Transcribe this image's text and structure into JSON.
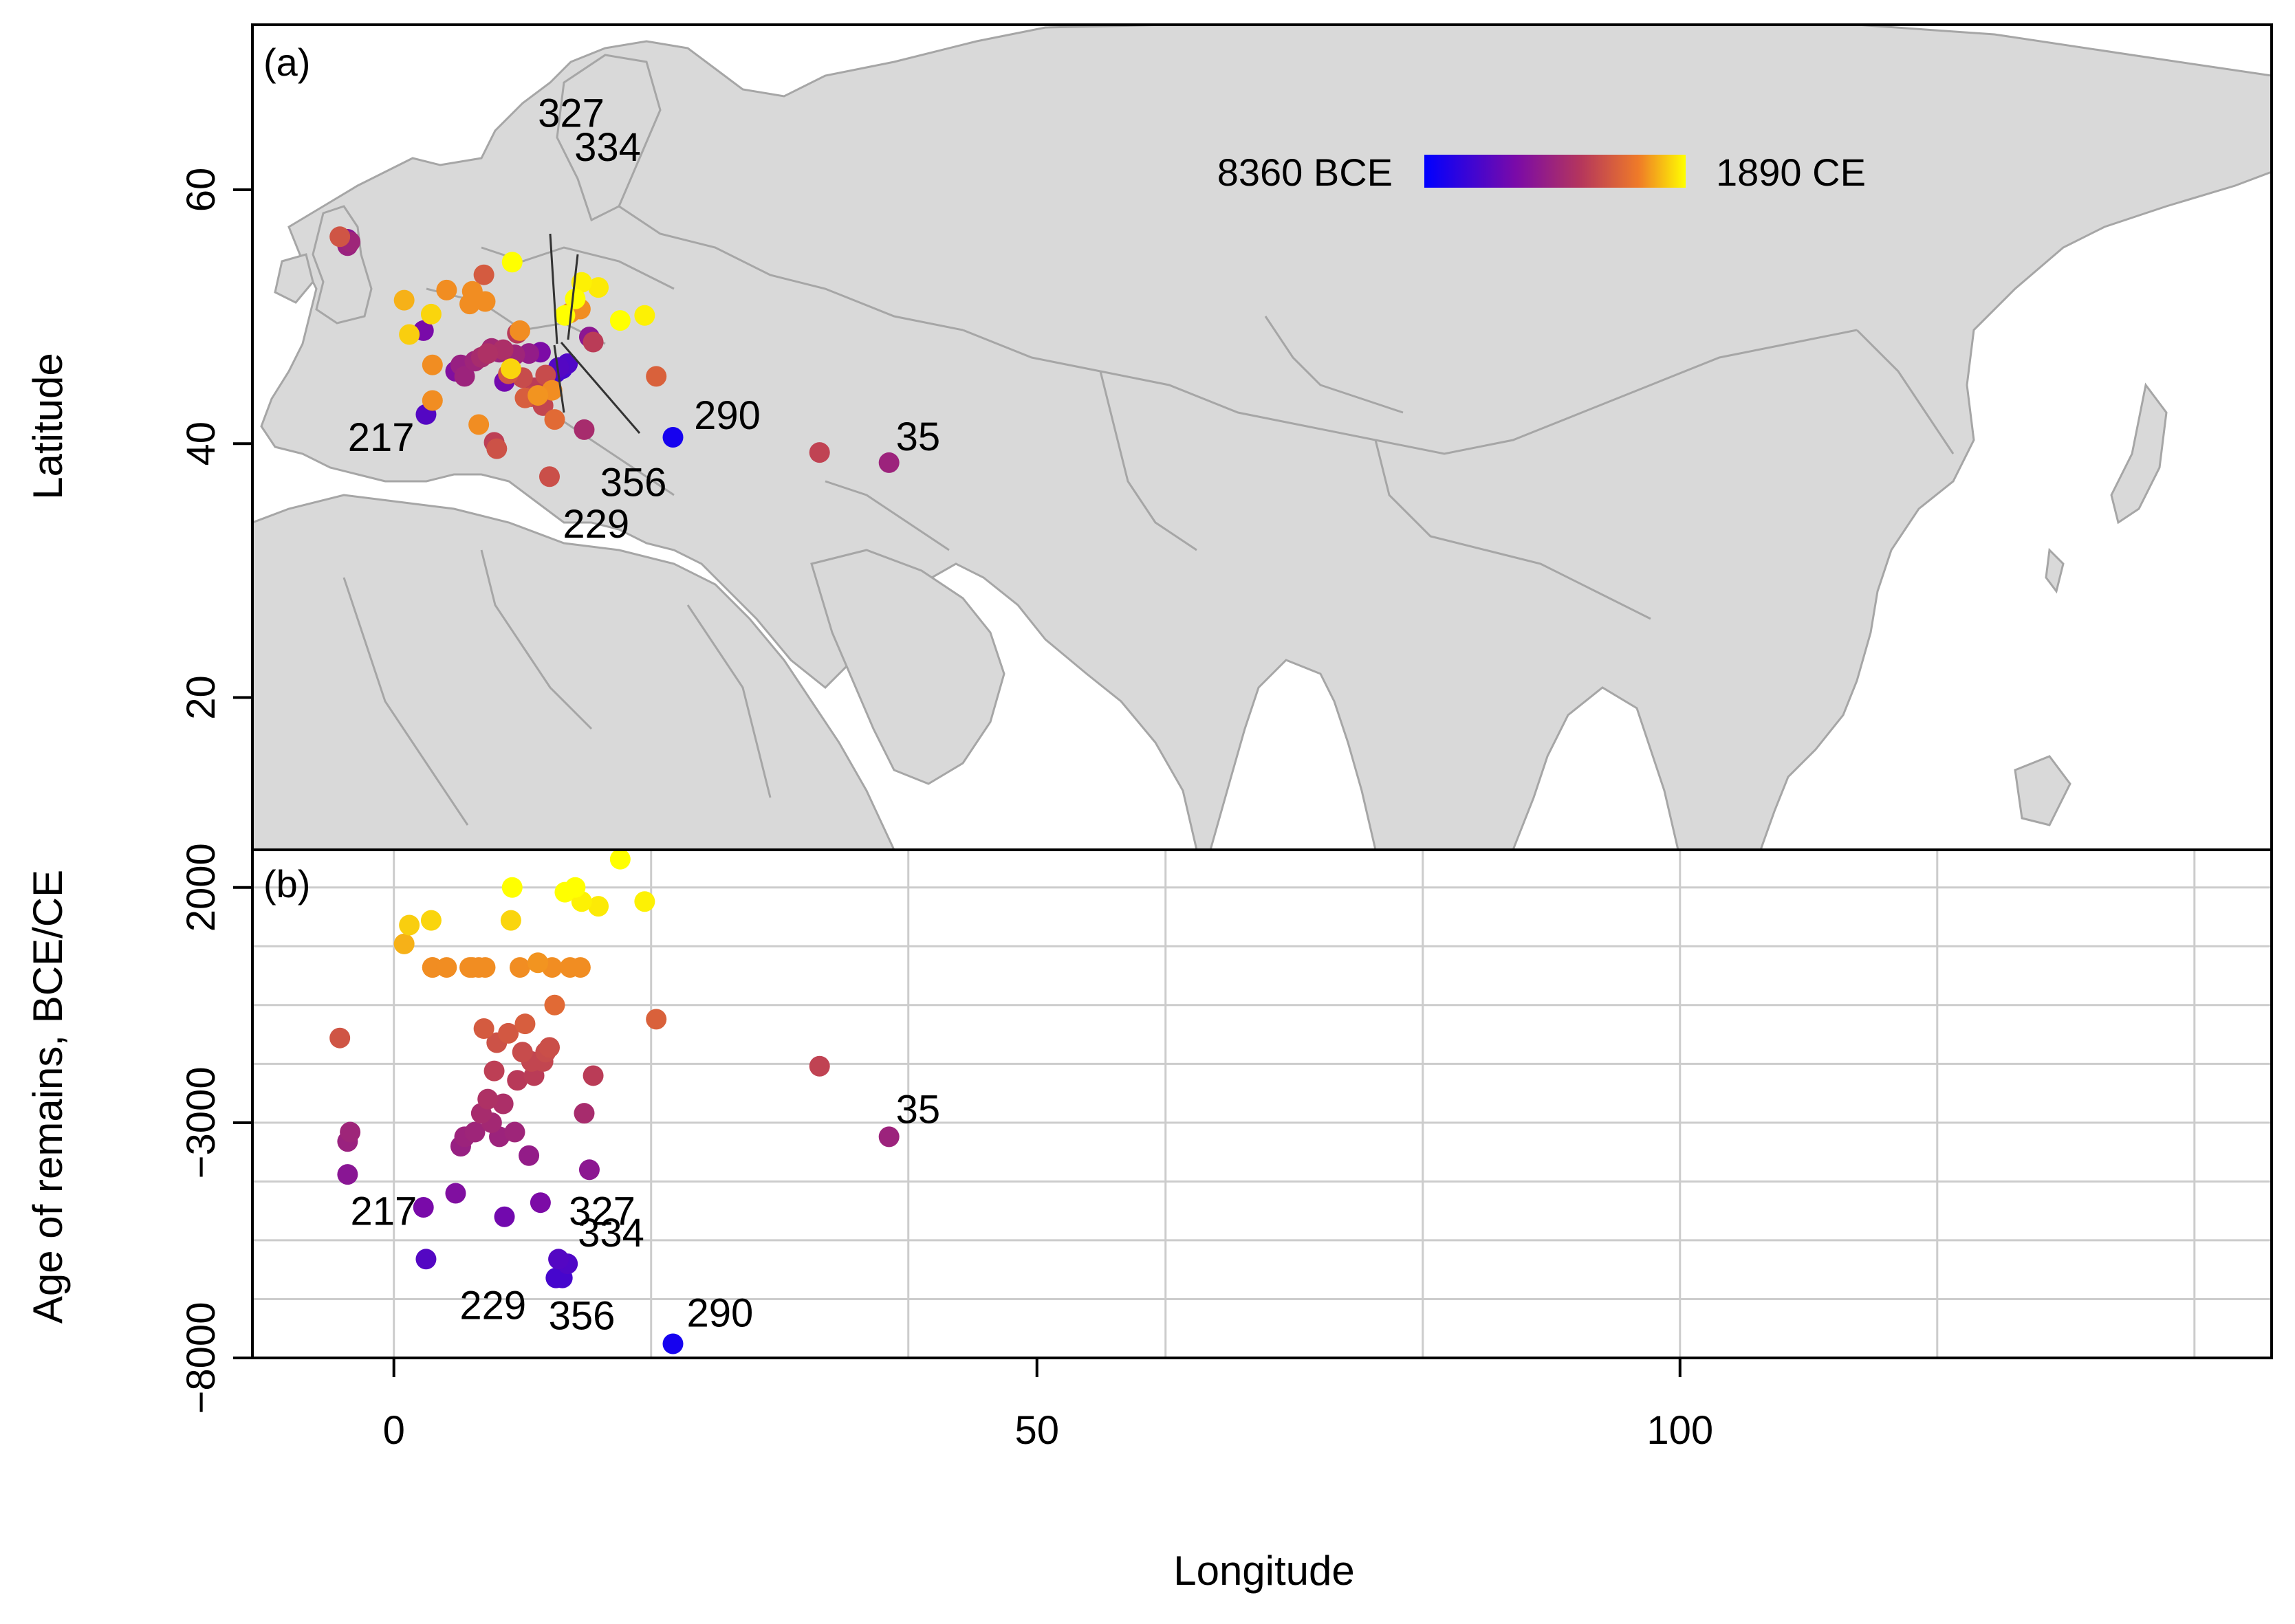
{
  "chart_data": [
    {
      "type": "scatter",
      "panel_tag": "(a)",
      "title": "",
      "xlabel": "Longitude",
      "ylabel": "Latitude",
      "xlim": [
        -11,
        146
      ],
      "ylim": [
        8,
        73
      ],
      "x_ticks": [
        "0",
        "50",
        "100"
      ],
      "x_tick_values": [
        0,
        50,
        100
      ],
      "y_ticks": [
        "20",
        "40",
        "60"
      ],
      "y_tick_values": [
        20,
        40,
        60
      ],
      "grid": false,
      "background": "grey world map with country borders",
      "colorbar": {
        "min_label": "8360 BCE",
        "max_label": "1890 CE",
        "colors": [
          "#0000ff",
          "#7a0aa8",
          "#b5365c",
          "#ef7b28",
          "#ffff00"
        ]
      },
      "annotations": [
        {
          "text": "327",
          "x": 12.8,
          "y": 46.0
        },
        {
          "text": "334",
          "x": 13.5,
          "y": 46.3
        },
        {
          "text": "290",
          "x": 22.0,
          "y": 40.6
        },
        {
          "text": "35",
          "x": 38.5,
          "y": 38.5
        },
        {
          "text": "217",
          "x": 2.3,
          "y": 42.4
        },
        {
          "text": "356",
          "x": 13.1,
          "y": 45.9
        },
        {
          "text": "229",
          "x": 12.6,
          "y": 45.6
        }
      ],
      "points": [
        {
          "lon": -4.2,
          "lat": 56.3,
          "age": -1200
        },
        {
          "lon": -3.6,
          "lat": 56.1,
          "age": -4100
        },
        {
          "lon": -3.6,
          "lat": 55.6,
          "age": -3400
        },
        {
          "lon": -3.4,
          "lat": 55.9,
          "age": -3200
        },
        {
          "lon": 0.8,
          "lat": 51.3,
          "age": 800
        },
        {
          "lon": 1.2,
          "lat": 48.6,
          "age": 1200
        },
        {
          "lon": 2.3,
          "lat": 48.9,
          "age": -4800
        },
        {
          "lon": 2.5,
          "lat": 42.3,
          "age": -5900
        },
        {
          "lon": 2.9,
          "lat": 50.2,
          "age": 1300
        },
        {
          "lon": 3.0,
          "lat": 43.4,
          "age": 300
        },
        {
          "lon": 3.0,
          "lat": 46.2,
          "age": 300
        },
        {
          "lon": 4.1,
          "lat": 52.1,
          "age": 300
        },
        {
          "lon": 4.8,
          "lat": 45.7,
          "age": -4500
        },
        {
          "lon": 5.2,
          "lat": 46.2,
          "age": -3500
        },
        {
          "lon": 5.5,
          "lat": 45.3,
          "age": -3300
        },
        {
          "lon": 5.9,
          "lat": 51.0,
          "age": 300
        },
        {
          "lon": 6.1,
          "lat": 52.0,
          "age": 300
        },
        {
          "lon": 6.3,
          "lat": 46.5,
          "age": -3200
        },
        {
          "lon": 6.6,
          "lat": 41.5,
          "age": 300
        },
        {
          "lon": 6.8,
          "lat": 46.8,
          "age": -2800
        },
        {
          "lon": 7.0,
          "lat": 53.3,
          "age": -1000
        },
        {
          "lon": 7.1,
          "lat": 51.2,
          "age": 300
        },
        {
          "lon": 7.3,
          "lat": 47.1,
          "age": -2500
        },
        {
          "lon": 7.6,
          "lat": 47.5,
          "age": -3000
        },
        {
          "lon": 7.8,
          "lat": 40.1,
          "age": -1900
        },
        {
          "lon": 8.0,
          "lat": 39.6,
          "age": -1300
        },
        {
          "lon": 8.2,
          "lat": 47.2,
          "age": -3300
        },
        {
          "lon": 8.5,
          "lat": 47.4,
          "age": -2600
        },
        {
          "lon": 8.6,
          "lat": 44.9,
          "age": -5000
        },
        {
          "lon": 8.9,
          "lat": 45.5,
          "age": -1100
        },
        {
          "lon": 9.1,
          "lat": 45.9,
          "age": 1300
        },
        {
          "lon": 9.2,
          "lat": 54.3,
          "age": 2000
        },
        {
          "lon": 9.4,
          "lat": 47.0,
          "age": -3200
        },
        {
          "lon": 9.6,
          "lat": 48.7,
          "age": -2100
        },
        {
          "lon": 9.8,
          "lat": 48.9,
          "age": 300
        },
        {
          "lon": 10.0,
          "lat": 45.2,
          "age": -1500
        },
        {
          "lon": 10.2,
          "lat": 43.6,
          "age": -900
        },
        {
          "lon": 10.5,
          "lat": 47.1,
          "age": -3700
        },
        {
          "lon": 10.7,
          "lat": 43.7,
          "age": -1700
        },
        {
          "lon": 10.9,
          "lat": 44.4,
          "age": -2000
        },
        {
          "lon": 11.2,
          "lat": 43.8,
          "age": 400
        },
        {
          "lon": 11.4,
          "lat": 47.2,
          "age": -4700
        },
        {
          "lon": 11.6,
          "lat": 43.0,
          "age": -1700
        },
        {
          "lon": 11.8,
          "lat": 45.4,
          "age": -1500
        },
        {
          "lon": 12.1,
          "lat": 37.4,
          "age": -1400
        },
        {
          "lon": 12.3,
          "lat": 44.2,
          "age": 300
        },
        {
          "lon": 12.5,
          "lat": 41.9,
          "age": -500
        },
        {
          "lon": 12.6,
          "lat": 45.6,
          "age": -6300
        },
        {
          "lon": 12.8,
          "lat": 46.0,
          "age": -5900
        },
        {
          "lon": 13.1,
          "lat": 45.9,
          "age": -6300
        },
        {
          "lon": 13.3,
          "lat": 50.1,
          "age": 1900
        },
        {
          "lon": 13.5,
          "lat": 46.3,
          "age": -6000
        },
        {
          "lon": 13.7,
          "lat": 50.3,
          "age": 300
        },
        {
          "lon": 14.1,
          "lat": 51.4,
          "age": 2000
        },
        {
          "lon": 14.5,
          "lat": 50.6,
          "age": 300
        },
        {
          "lon": 14.6,
          "lat": 52.7,
          "age": 1700
        },
        {
          "lon": 14.8,
          "lat": 41.1,
          "age": -2800
        },
        {
          "lon": 15.2,
          "lat": 48.4,
          "age": -4000
        },
        {
          "lon": 15.5,
          "lat": 48.0,
          "age": -2000
        },
        {
          "lon": 15.9,
          "lat": 52.3,
          "age": 1600
        },
        {
          "lon": 17.6,
          "lat": 49.7,
          "age": 2600
        },
        {
          "lon": 19.5,
          "lat": 50.1,
          "age": 1700
        },
        {
          "lon": 20.4,
          "lat": 45.3,
          "age": -800
        },
        {
          "lon": 21.7,
          "lat": 40.5,
          "age": -7700
        },
        {
          "lon": 33.1,
          "lat": 39.3,
          "age": -1800
        },
        {
          "lon": 38.5,
          "lat": 38.5,
          "age": -3300
        }
      ]
    },
    {
      "type": "scatter",
      "panel_tag": "(b)",
      "title": "",
      "xlabel": "Longitude",
      "ylabel": "Age of remains, BCE/CE",
      "xlim": [
        -11,
        146
      ],
      "ylim": [
        -8000,
        2800
      ],
      "x_ticks": [
        "0",
        "50",
        "100"
      ],
      "x_tick_values": [
        0,
        50,
        100
      ],
      "y_ticks": [
        "−8000",
        "−3000",
        "2000"
      ],
      "y_tick_values": [
        -8000,
        -3000,
        2000
      ],
      "grid": true,
      "annotations": [
        {
          "text": "35",
          "x": 38.5,
          "y": -3300
        },
        {
          "text": "327",
          "x": 12.8,
          "y": -5900
        },
        {
          "text": "217",
          "x": 2.5,
          "y": -5900
        },
        {
          "text": "334",
          "x": 13.5,
          "y": -6000
        },
        {
          "text": "229",
          "x": 12.6,
          "y": -6300
        },
        {
          "text": "356",
          "x": 13.1,
          "y": -6300
        },
        {
          "text": "290",
          "x": 21.7,
          "y": -7700
        }
      ]
    }
  ]
}
